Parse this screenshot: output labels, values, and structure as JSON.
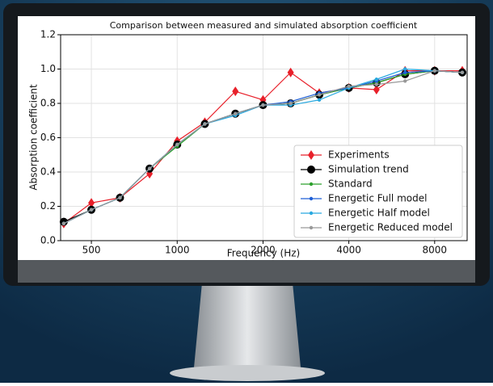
{
  "chart_data": {
    "type": "line",
    "title": "Comparison between measured and simulated absorption coefficient",
    "x_label": "Frequency (Hz)",
    "y_label": "Absorption coefficient",
    "x": [
      400,
      500,
      630,
      800,
      1000,
      1250,
      1600,
      2000,
      2500,
      3150,
      4000,
      5000,
      6300,
      8000,
      10000
    ],
    "xlim": [
      390,
      10400
    ],
    "xticks": [
      500,
      1000,
      2000,
      4000,
      8000
    ],
    "xscale": "log",
    "ylim": [
      0,
      1.2
    ],
    "yticks": [
      {
        "value": 0,
        "label": "0.0"
      },
      0.2,
      0.4,
      0.6,
      0.8,
      {
        "value": 1,
        "label": "1.0"
      },
      1.2
    ],
    "grid": true,
    "legend": "lower right",
    "series": [
      {
        "name": "Experiments",
        "color": "#e8202a",
        "marker": "diamond",
        "values": [
          0.1,
          0.22,
          0.25,
          0.39,
          0.58,
          0.69,
          0.87,
          0.82,
          0.98,
          0.86,
          0.89,
          0.88,
          0.99,
          0.99,
          0.99
        ]
      },
      {
        "name": "Simulation trend",
        "color": "#000000",
        "marker": "big-circle",
        "values": [
          0.11,
          0.18,
          0.25,
          0.42,
          0.56,
          0.68,
          0.74,
          0.79,
          0.8,
          0.85,
          0.89,
          0.92,
          0.97,
          0.99,
          0.98
        ]
      },
      {
        "name": "Standard",
        "color": "#2ca02c",
        "marker": "dot",
        "values": [
          0.1,
          0.18,
          0.25,
          0.42,
          0.55,
          0.68,
          0.74,
          0.79,
          0.8,
          0.85,
          0.89,
          0.92,
          0.97,
          0.99,
          0.98
        ]
      },
      {
        "name": "Energetic Full model",
        "color": "#1f5fd6",
        "marker": "dot",
        "values": [
          0.1,
          0.18,
          0.25,
          0.42,
          0.56,
          0.68,
          0.74,
          0.79,
          0.81,
          0.86,
          0.89,
          0.93,
          0.98,
          0.99,
          0.98
        ]
      },
      {
        "name": "Energetic Half model",
        "color": "#29a9e0",
        "marker": "dot",
        "values": [
          0.1,
          0.18,
          0.25,
          0.42,
          0.56,
          0.68,
          0.73,
          0.79,
          0.79,
          0.82,
          0.89,
          0.94,
          1.0,
          0.99,
          0.98
        ]
      },
      {
        "name": "Energetic Reduced model",
        "color": "#999999",
        "marker": "dot",
        "values": [
          0.1,
          0.18,
          0.25,
          0.42,
          0.56,
          0.68,
          0.74,
          0.79,
          0.8,
          0.85,
          0.9,
          0.91,
          0.93,
          0.99,
          0.98
        ]
      }
    ]
  }
}
